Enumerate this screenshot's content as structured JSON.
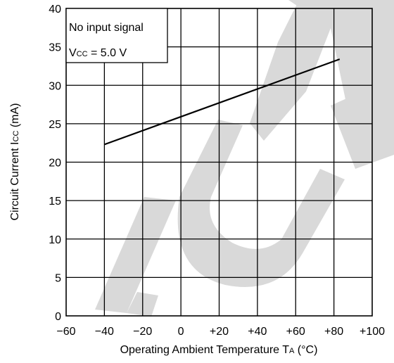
{
  "chart_data": {
    "type": "line",
    "xlabel_main": "Operating Ambient Temperature  T",
    "xlabel_sub": "A",
    "xlabel_unit": " (°C)",
    "ylabel_main": "Circuit Current  I",
    "ylabel_sub": "CC",
    "ylabel_unit": " (mA)",
    "x_ticks": [
      "−60",
      "−40",
      "−20",
      "0",
      "+20",
      "+40",
      "+60",
      "+80",
      "+100"
    ],
    "y_ticks": [
      "0",
      "5",
      "10",
      "15",
      "20",
      "25",
      "30",
      "35",
      "40"
    ],
    "xlim": [
      -60,
      100
    ],
    "ylim": [
      0,
      40
    ],
    "grid": true,
    "annotation": {
      "line1": "No input signal",
      "line2_main": "V",
      "line2_sub": "CC",
      "line2_rest": " = 5.0 V"
    },
    "series": [
      {
        "x": [
          -40,
          83
        ],
        "y": [
          22.3,
          33.4
        ]
      }
    ],
    "watermark": "OUT",
    "watermark_color": "#d9d9d9",
    "line_color": "#000000",
    "grid_color": "#000000"
  }
}
